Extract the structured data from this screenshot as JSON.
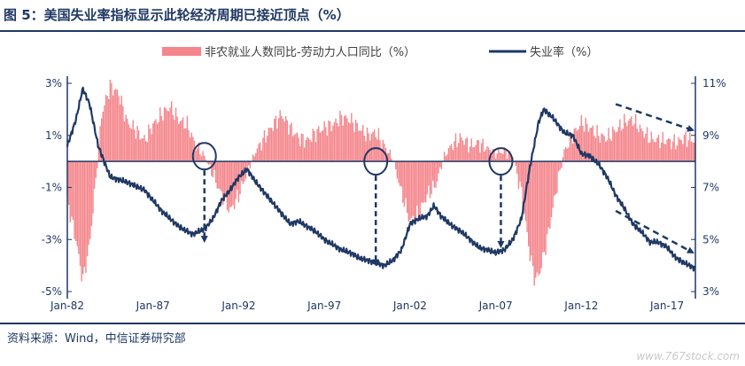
{
  "title": "图 5：美国失业率指标显示此轮经济周期已接近顶点（%）",
  "source": "资料来源：Wind，中信证券研究部",
  "watermark": "www.767stock.com",
  "colors": {
    "bar": "#f4868c",
    "line": "#1f3864",
    "annotation": "#1f3864"
  },
  "chart_data": {
    "type": "bar+line",
    "legend": [
      {
        "name": "非农就业人数同比-劳动力人口同比（%）",
        "kind": "bar"
      },
      {
        "name": "失业率（%）",
        "kind": "line"
      }
    ],
    "legend_position": "top",
    "x_ticks": [
      "Jan-82",
      "Jan-87",
      "Jan-92",
      "Jan-97",
      "Jan-02",
      "Jan-07",
      "Jan-12",
      "Jan-17"
    ],
    "x_range": [
      "1982-01",
      "2018-08"
    ],
    "left_axis": {
      "ticks": [
        "3%",
        "1%",
        "-1%",
        "-3%",
        "-5%"
      ],
      "range": [
        -5,
        3
      ]
    },
    "right_axis": {
      "ticks": [
        "11%",
        "9%",
        "7%",
        "5%",
        "3%"
      ],
      "range": [
        3,
        11
      ]
    },
    "bar_series": {
      "name": "非农就业人数同比-劳动力人口同比（%）",
      "points": [
        [
          1982.0,
          -1.5
        ],
        [
          1982.5,
          -3.0
        ],
        [
          1982.9,
          -4.6
        ],
        [
          1983.3,
          -3.2
        ],
        [
          1983.7,
          -0.5
        ],
        [
          1984.0,
          1.8
        ],
        [
          1984.5,
          2.9
        ],
        [
          1985.0,
          2.6
        ],
        [
          1985.5,
          1.5
        ],
        [
          1986.0,
          1.2
        ],
        [
          1986.5,
          0.8
        ],
        [
          1987.0,
          1.4
        ],
        [
          1987.5,
          1.8
        ],
        [
          1988.0,
          2.1
        ],
        [
          1988.5,
          1.6
        ],
        [
          1989.0,
          1.4
        ],
        [
          1989.5,
          0.6
        ],
        [
          1990.0,
          0.2
        ],
        [
          1990.5,
          -0.5
        ],
        [
          1991.0,
          -1.3
        ],
        [
          1991.5,
          -1.9
        ],
        [
          1992.0,
          -1.3
        ],
        [
          1992.5,
          -0.4
        ],
        [
          1993.0,
          0.4
        ],
        [
          1993.5,
          0.9
        ],
        [
          1994.0,
          1.4
        ],
        [
          1994.5,
          1.8
        ],
        [
          1995.0,
          1.3
        ],
        [
          1995.5,
          0.9
        ],
        [
          1996.0,
          0.8
        ],
        [
          1996.5,
          1.1
        ],
        [
          1997.0,
          1.3
        ],
        [
          1997.5,
          1.4
        ],
        [
          1998.0,
          1.7
        ],
        [
          1998.5,
          1.6
        ],
        [
          1999.0,
          1.3
        ],
        [
          1999.5,
          1.0
        ],
        [
          2000.0,
          1.1
        ],
        [
          2000.5,
          0.6
        ],
        [
          2001.0,
          0.1
        ],
        [
          2001.5,
          -1.2
        ],
        [
          2002.0,
          -2.3
        ],
        [
          2002.5,
          -2.0
        ],
        [
          2003.0,
          -1.3
        ],
        [
          2003.5,
          -0.9
        ],
        [
          2004.0,
          0.2
        ],
        [
          2004.5,
          0.7
        ],
        [
          2005.0,
          0.9
        ],
        [
          2005.5,
          0.6
        ],
        [
          2006.0,
          0.7
        ],
        [
          2006.5,
          0.5
        ],
        [
          2007.0,
          0.3
        ],
        [
          2007.5,
          0.4
        ],
        [
          2008.0,
          0.2
        ],
        [
          2008.5,
          -1.2
        ],
        [
          2009.0,
          -3.6
        ],
        [
          2009.3,
          -4.6
        ],
        [
          2009.6,
          -4.2
        ],
        [
          2010.0,
          -3.0
        ],
        [
          2010.5,
          -1.2
        ],
        [
          2011.0,
          0.4
        ],
        [
          2011.5,
          1.0
        ],
        [
          2012.0,
          1.5
        ],
        [
          2012.5,
          1.3
        ],
        [
          2013.0,
          1.0
        ],
        [
          2013.5,
          0.9
        ],
        [
          2014.0,
          1.2
        ],
        [
          2014.5,
          1.5
        ],
        [
          2015.0,
          1.6
        ],
        [
          2015.5,
          1.2
        ],
        [
          2016.0,
          0.9
        ],
        [
          2016.5,
          0.8
        ],
        [
          2017.0,
          0.8
        ],
        [
          2017.5,
          0.7
        ],
        [
          2018.0,
          0.9
        ],
        [
          2018.6,
          0.8
        ]
      ]
    },
    "line_series": {
      "name": "失业率（%）",
      "points": [
        [
          1982.0,
          8.6
        ],
        [
          1982.5,
          9.6
        ],
        [
          1982.9,
          10.8
        ],
        [
          1983.3,
          10.2
        ],
        [
          1983.8,
          8.6
        ],
        [
          1984.5,
          7.4
        ],
        [
          1985.5,
          7.2
        ],
        [
          1986.5,
          6.9
        ],
        [
          1987.5,
          6.1
        ],
        [
          1988.5,
          5.5
        ],
        [
          1989.3,
          5.2
        ],
        [
          1990.0,
          5.4
        ],
        [
          1990.5,
          5.8
        ],
        [
          1991.0,
          6.5
        ],
        [
          1991.5,
          6.9
        ],
        [
          1992.0,
          7.4
        ],
        [
          1992.5,
          7.7
        ],
        [
          1993.0,
          7.2
        ],
        [
          1993.5,
          6.8
        ],
        [
          1994.0,
          6.4
        ],
        [
          1994.5,
          6.0
        ],
        [
          1995.0,
          5.6
        ],
        [
          1995.5,
          5.7
        ],
        [
          1996.0,
          5.5
        ],
        [
          1996.5,
          5.3
        ],
        [
          1997.0,
          5.0
        ],
        [
          1997.5,
          4.8
        ],
        [
          1998.0,
          4.6
        ],
        [
          1998.5,
          4.5
        ],
        [
          1999.0,
          4.3
        ],
        [
          1999.5,
          4.2
        ],
        [
          2000.0,
          4.1
        ],
        [
          2000.5,
          4.0
        ],
        [
          2001.0,
          4.2
        ],
        [
          2001.5,
          4.6
        ],
        [
          2002.0,
          5.6
        ],
        [
          2002.5,
          5.8
        ],
        [
          2003.0,
          5.9
        ],
        [
          2003.4,
          6.3
        ],
        [
          2003.8,
          5.9
        ],
        [
          2004.5,
          5.5
        ],
        [
          2005.0,
          5.3
        ],
        [
          2005.5,
          5.0
        ],
        [
          2006.0,
          4.7
        ],
        [
          2006.5,
          4.6
        ],
        [
          2007.0,
          4.5
        ],
        [
          2007.5,
          4.6
        ],
        [
          2008.0,
          5.0
        ],
        [
          2008.5,
          5.8
        ],
        [
          2009.0,
          7.8
        ],
        [
          2009.5,
          9.5
        ],
        [
          2009.8,
          10.0
        ],
        [
          2010.3,
          9.7
        ],
        [
          2011.0,
          9.1
        ],
        [
          2011.5,
          9.0
        ],
        [
          2012.0,
          8.3
        ],
        [
          2012.5,
          8.2
        ],
        [
          2013.0,
          7.9
        ],
        [
          2013.5,
          7.4
        ],
        [
          2014.0,
          6.7
        ],
        [
          2014.5,
          6.2
        ],
        [
          2015.0,
          5.6
        ],
        [
          2015.5,
          5.3
        ],
        [
          2016.0,
          4.9
        ],
        [
          2016.5,
          4.9
        ],
        [
          2017.0,
          4.7
        ],
        [
          2017.5,
          4.3
        ],
        [
          2018.0,
          4.1
        ],
        [
          2018.6,
          3.9
        ]
      ]
    },
    "annotations": [
      {
        "type": "circle",
        "x": 1990.0,
        "y_left": 0.2,
        "arrow_to_y_left": -3.2
      },
      {
        "type": "circle",
        "x": 2000.0,
        "y_left": 0.0,
        "arrow_to_y_left": -4.1
      },
      {
        "type": "circle",
        "x": 2007.3,
        "y_left": 0.0,
        "arrow_to_y_left": -3.4
      },
      {
        "type": "trend-arrow",
        "from": [
          2014.0,
          2.2
        ],
        "to": [
          2018.5,
          1.2
        ]
      },
      {
        "type": "trend-arrow",
        "from": [
          2014.0,
          -1.9
        ],
        "to": [
          2018.5,
          -3.5
        ]
      }
    ]
  }
}
